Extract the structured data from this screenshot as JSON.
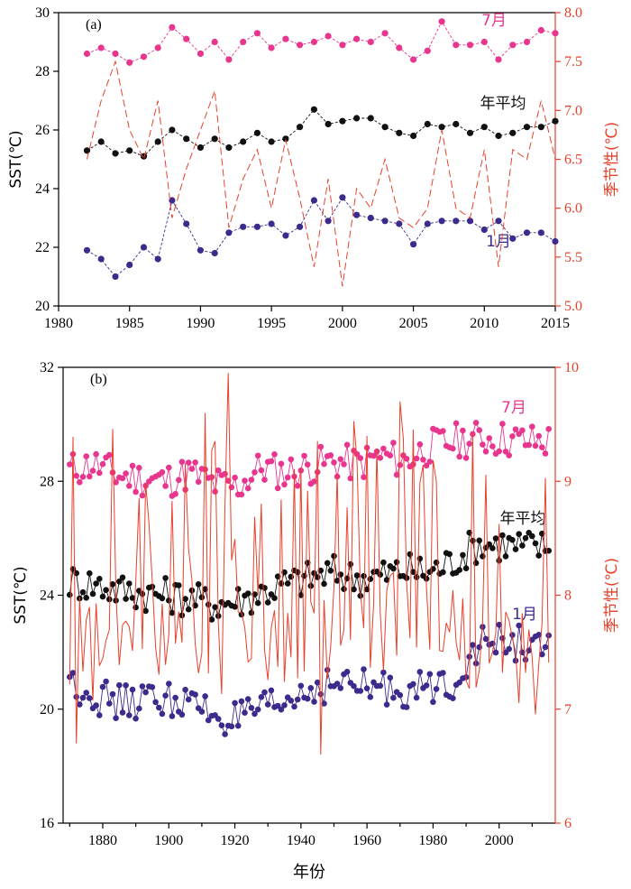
{
  "chart_data": [
    {
      "panel_label": "(a)",
      "type": "line",
      "ylabel": "SST(℃)",
      "y2label": "季节性(℃)",
      "xlim": [
        1980,
        2015
      ],
      "ylim": [
        20,
        30
      ],
      "y2lim": [
        5.0,
        8.0
      ],
      "xticks": [
        1980,
        1985,
        1990,
        1995,
        2000,
        2005,
        2010,
        2015
      ],
      "yticks": [
        20,
        22,
        24,
        26,
        28,
        30
      ],
      "y2ticks": [
        "5.0",
        "5.5",
        "6.0",
        "6.5",
        "7.0",
        "7.5",
        "8.0"
      ],
      "x": [
        1982,
        1983,
        1984,
        1985,
        1986,
        1987,
        1988,
        1989,
        1990,
        1991,
        1992,
        1993,
        1994,
        1995,
        1996,
        1997,
        1998,
        1999,
        2000,
        2001,
        2002,
        2003,
        2004,
        2005,
        2006,
        2007,
        2008,
        2009,
        2010,
        2011,
        2012,
        2013,
        2014,
        2015
      ],
      "series": [
        {
          "name": "7月",
          "color": "#e8368f",
          "axis": "left",
          "marker": true,
          "values": [
            28.6,
            28.8,
            28.6,
            28.3,
            28.5,
            28.8,
            29.5,
            29.1,
            28.6,
            29.0,
            28.4,
            29.0,
            29.3,
            28.8,
            29.1,
            28.9,
            29.0,
            29.2,
            28.9,
            29.1,
            29.0,
            29.3,
            28.8,
            28.4,
            28.7,
            29.7,
            28.9,
            28.9,
            29.0,
            28.4,
            28.9,
            29.0,
            29.4,
            29.3
          ]
        },
        {
          "name": "年平均",
          "color": "#111111",
          "axis": "left",
          "marker": true,
          "values": [
            25.3,
            25.6,
            25.2,
            25.3,
            25.1,
            25.6,
            26.0,
            25.7,
            25.4,
            25.7,
            25.4,
            25.6,
            25.9,
            25.6,
            25.7,
            26.1,
            26.7,
            26.2,
            26.3,
            26.4,
            26.4,
            26.1,
            25.9,
            25.8,
            26.2,
            26.1,
            26.2,
            25.9,
            26.1,
            25.8,
            25.9,
            26.1,
            26.1,
            26.3
          ]
        },
        {
          "name": "1月",
          "color": "#3d2a8c",
          "axis": "left",
          "marker": true,
          "values": [
            21.9,
            21.6,
            21.0,
            21.4,
            22.0,
            21.6,
            23.6,
            22.8,
            21.9,
            21.8,
            22.5,
            22.7,
            22.7,
            22.8,
            22.4,
            22.7,
            23.6,
            22.9,
            23.7,
            23.1,
            23.0,
            22.9,
            22.8,
            22.1,
            22.8,
            22.9,
            22.9,
            22.9,
            22.6,
            22.9,
            22.3,
            22.5,
            22.5,
            22.2
          ]
        },
        {
          "name": "",
          "color": "#e8412c",
          "axis": "right",
          "marker": false,
          "dash": "8,4",
          "values": [
            6.5,
            7.1,
            7.5,
            6.8,
            6.5,
            7.1,
            5.9,
            6.4,
            6.8,
            7.2,
            5.8,
            6.3,
            6.6,
            6.0,
            6.7,
            6.1,
            5.4,
            6.3,
            5.2,
            6.2,
            6.0,
            6.5,
            5.9,
            5.8,
            6.0,
            6.8,
            6.0,
            5.9,
            6.6,
            5.4,
            6.6,
            6.5,
            7.1,
            6.5
          ]
        }
      ]
    },
    {
      "panel_label": "(b)",
      "type": "line",
      "xlabel": "年份",
      "ylabel": "SST(℃)",
      "y2label": "季节性(℃)",
      "xlim": [
        1868,
        2017
      ],
      "ylim": [
        16,
        32
      ],
      "y2lim": [
        6,
        10
      ],
      "xticks": [
        1880,
        1900,
        1920,
        1940,
        1960,
        1980,
        2000
      ],
      "yticks": [
        16,
        20,
        24,
        28,
        32
      ],
      "y2ticks": [
        "6",
        "7",
        "8",
        "9",
        "10"
      ],
      "x_start": 1870,
      "x_end": 2015,
      "series": [
        {
          "name": "7月",
          "color": "#e8368f",
          "axis": "left",
          "marker": true,
          "anchor_values": [
            28.4,
            28.6,
            28.2,
            28.1,
            28.0,
            28.3,
            27.9,
            27.8,
            28.5,
            28.3,
            28.5,
            28.7,
            28.6,
            28.9,
            28.7,
            29.2,
            29.4,
            29.5,
            29.5,
            29.4,
            29.4
          ]
        },
        {
          "name": "年平均",
          "color": "#111111",
          "axis": "left",
          "marker": true,
          "anchor_values": [
            24.5,
            24.4,
            24.2,
            24.1,
            24.0,
            23.9,
            23.7,
            23.8,
            24.1,
            24.4,
            24.6,
            24.8,
            24.6,
            24.7,
            24.9,
            24.8,
            25.2,
            25.8,
            25.8,
            25.7,
            25.7
          ]
        },
        {
          "name": "1月",
          "color": "#3d2a8c",
          "axis": "left",
          "marker": true,
          "anchor_values": [
            21.0,
            20.5,
            20.2,
            20.3,
            20.4,
            20.2,
            19.8,
            19.6,
            19.9,
            20.2,
            20.7,
            20.9,
            20.8,
            20.7,
            20.7,
            20.7,
            21.0,
            22.2,
            22.4,
            22.3,
            22.0
          ]
        },
        {
          "name": "",
          "color": "#e8412c",
          "axis": "right",
          "marker": false,
          "anchor_values": [
            7.6,
            7.5,
            7.6,
            7.7,
            7.7,
            7.8,
            7.6,
            7.5,
            7.6,
            7.6,
            7.7,
            7.7,
            7.8,
            7.7,
            7.9,
            7.7,
            7.7,
            7.5,
            7.4,
            7.4,
            7.4
          ],
          "spikes": [
            {
              "x": 1918,
              "value": 9.95
            },
            {
              "x": 1970,
              "value": 9.7
            },
            {
              "x": 1946,
              "value": 6.6
            },
            {
              "x": 2002,
              "value": 6.7
            },
            {
              "x": 1872,
              "value": 6.7
            }
          ]
        }
      ]
    }
  ]
}
